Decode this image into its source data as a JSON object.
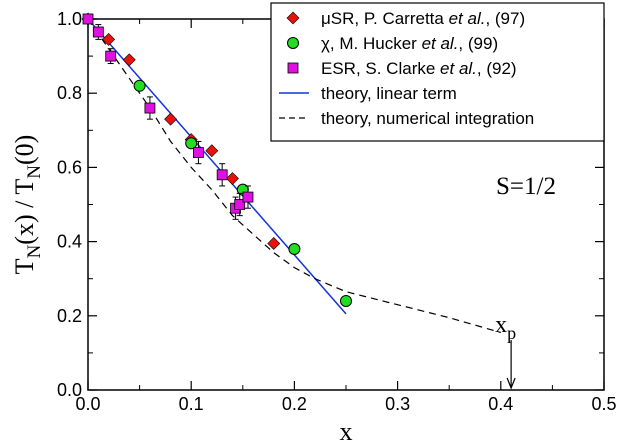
{
  "chart_data": {
    "type": "scatter",
    "xlabel": "x",
    "ylabel": "T_N(x) / T_N(0)",
    "xlim": [
      0,
      0.5
    ],
    "ylim": [
      0,
      1.0
    ],
    "x_ticks": [
      "0.0",
      "0.1",
      "0.2",
      "0.3",
      "0.4",
      "0.5"
    ],
    "y_ticks": [
      "0.0",
      "0.2",
      "0.4",
      "0.6",
      "0.8",
      "1.0"
    ],
    "grid": false,
    "legend_position": "top-right",
    "annotations": {
      "spin": "S=1/2",
      "xp_label": "x",
      "xp_subscript": "p",
      "xp_value": 0.41
    },
    "series": [
      {
        "name": "μSR, P. Carretta et al., (97)",
        "legend_plain": "μSR, P. Carretta ",
        "legend_italic": "et al.",
        "legend_suffix": ", (97)",
        "marker": "diamond",
        "color": "#e8120c",
        "points": [
          [
            0.0,
            1.0
          ],
          [
            0.02,
            0.945
          ],
          [
            0.04,
            0.89
          ],
          [
            0.08,
            0.73
          ],
          [
            0.1,
            0.675
          ],
          [
            0.12,
            0.645
          ],
          [
            0.14,
            0.57
          ],
          [
            0.18,
            0.395
          ]
        ]
      },
      {
        "name": "χ, M. Hucker et al., (99)",
        "legend_plain": "χ, M. Hucker ",
        "legend_italic": "et al.",
        "legend_suffix": ", (99)",
        "marker": "circle",
        "color": "#22dd22",
        "points": [
          [
            0.05,
            0.82
          ],
          [
            0.1,
            0.665
          ],
          [
            0.15,
            0.54
          ],
          [
            0.2,
            0.38
          ],
          [
            0.25,
            0.24
          ]
        ]
      },
      {
        "name": "ESR, S. Clarke et al., (92)",
        "legend_plain": "ESR, S. Clarke ",
        "legend_italic": "et al.",
        "legend_suffix": ", (92)",
        "marker": "square",
        "color": "#e010e0",
        "points": [
          [
            0.0,
            1.0
          ],
          [
            0.01,
            0.965
          ],
          [
            0.022,
            0.9
          ],
          [
            0.06,
            0.76
          ],
          [
            0.107,
            0.64
          ],
          [
            0.13,
            0.58
          ],
          [
            0.143,
            0.49
          ],
          [
            0.147,
            0.5
          ],
          [
            0.155,
            0.52
          ]
        ],
        "errors": [
          0.0,
          0.02,
          0.02,
          0.03,
          0.03,
          0.03,
          0.03,
          0.03,
          0.03
        ]
      },
      {
        "name": "theory, linear term",
        "marker": "line",
        "color": "#1133dd",
        "points": [
          [
            0.0,
            1.0
          ],
          [
            0.25,
            0.205
          ]
        ]
      },
      {
        "name": "theory, numerical integration",
        "marker": "dashed",
        "color": "#000000",
        "points": [
          [
            0.0,
            1.0
          ],
          [
            0.03,
            0.88
          ],
          [
            0.06,
            0.76
          ],
          [
            0.08,
            0.67
          ],
          [
            0.1,
            0.6
          ],
          [
            0.12,
            0.54
          ],
          [
            0.14,
            0.47
          ],
          [
            0.16,
            0.42
          ],
          [
            0.18,
            0.37
          ],
          [
            0.2,
            0.33
          ],
          [
            0.22,
            0.3
          ],
          [
            0.25,
            0.265
          ],
          [
            0.3,
            0.23
          ],
          [
            0.35,
            0.195
          ],
          [
            0.4,
            0.155
          ]
        ]
      }
    ]
  }
}
